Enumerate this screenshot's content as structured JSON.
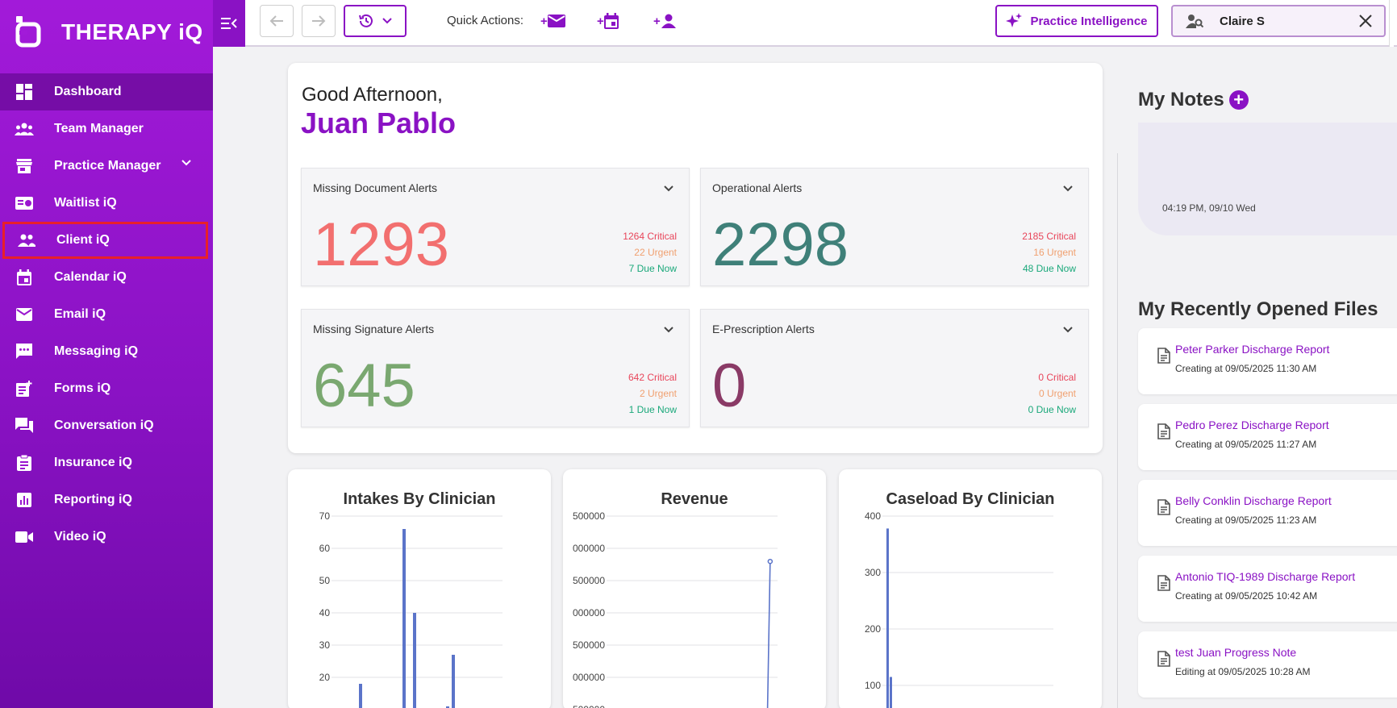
{
  "app": {
    "name": "THERAPY iQ"
  },
  "sidebar": {
    "items": [
      {
        "label": "Dashboard",
        "icon": "dashboard-icon"
      },
      {
        "label": "Team Manager",
        "icon": "team-icon"
      },
      {
        "label": "Practice Manager",
        "icon": "store-icon"
      },
      {
        "label": "Waitlist iQ",
        "icon": "waitlist-icon"
      },
      {
        "label": "Client iQ",
        "icon": "people-icon"
      },
      {
        "label": "Calendar iQ",
        "icon": "calendar-icon"
      },
      {
        "label": "Email iQ",
        "icon": "mail-icon"
      },
      {
        "label": "Messaging iQ",
        "icon": "chat-icon"
      },
      {
        "label": "Forms iQ",
        "icon": "forms-icon"
      },
      {
        "label": "Conversation iQ",
        "icon": "conversation-icon"
      },
      {
        "label": "Insurance iQ",
        "icon": "clipboard-icon"
      },
      {
        "label": "Reporting iQ",
        "icon": "report-icon"
      },
      {
        "label": "Video iQ",
        "icon": "video-icon"
      }
    ]
  },
  "topbar": {
    "quick_actions_label": "Quick Actions:",
    "qa_prefix": "+",
    "practice_intelligence": "Practice Intelligence",
    "client_search_value": "Claire S"
  },
  "greeting": {
    "line1": "Good Afternoon,",
    "name": "Juan Pablo"
  },
  "alerts": [
    {
      "title": "Missing Document Alerts",
      "count": "1293",
      "critical": "1264 Critical",
      "urgent": "22 Urgent",
      "due": "7 Due Now",
      "color": "#f26f6f"
    },
    {
      "title": "Operational Alerts",
      "count": "2298",
      "critical": "2185 Critical",
      "urgent": "16 Urgent",
      "due": "48 Due Now",
      "color": "#3f8079"
    },
    {
      "title": "Missing Signature Alerts",
      "count": "645",
      "critical": "642 Critical",
      "urgent": "2 Urgent",
      "due": "1 Due Now",
      "color": "#7aa870"
    },
    {
      "title": "E-Prescription Alerts",
      "count": "0",
      "critical": "0 Critical",
      "urgent": "0 Urgent",
      "due": "0 Due Now",
      "color": "#8a3a66"
    }
  ],
  "chart_data": [
    {
      "type": "bar",
      "title": "Intakes By Clinician",
      "yticks": [
        "70",
        "60",
        "50",
        "40",
        "30",
        "20"
      ],
      "ylim": [
        10,
        70
      ],
      "values": [
        18,
        66,
        40,
        11,
        27
      ]
    },
    {
      "type": "line",
      "title": "Revenue",
      "yticks": [
        "500000",
        "000000",
        "500000",
        "000000",
        "500000",
        "000000",
        "500000"
      ],
      "x_fraction": [
        0.0,
        0.92,
        0.98
      ],
      "y_fraction": [
        0.0,
        0.0,
        0.89
      ]
    },
    {
      "type": "bar",
      "title": "Caseload By Clinician",
      "yticks": [
        "400",
        "300",
        "200",
        "100"
      ],
      "ylim": [
        50,
        400
      ],
      "values": [
        378,
        115
      ]
    }
  ],
  "notes": {
    "title": "My Notes",
    "add": "+",
    "timestamp": "04:19 PM, 09/10 Wed"
  },
  "files": {
    "title": "My Recently Opened Files",
    "items": [
      {
        "name": "Peter Parker Discharge Report",
        "date": "Creating at 09/05/2025 11:30 AM"
      },
      {
        "name": "Pedro Perez Discharge Report",
        "date": "Creating at 09/05/2025 11:27 AM"
      },
      {
        "name": "Belly Conklin Discharge Report",
        "date": "Creating at 09/05/2025 11:23 AM"
      },
      {
        "name": "Antonio TIQ-1989 Discharge Report",
        "date": "Creating at 09/05/2025 10:42 AM"
      },
      {
        "name": "test Juan Progress Note",
        "date": "Editing at 09/05/2025 10:28 AM"
      }
    ]
  },
  "colors": {
    "brand": "#8a12c4",
    "sidebar_top": "#a21ad9",
    "highlight_border": "#e8202a"
  }
}
